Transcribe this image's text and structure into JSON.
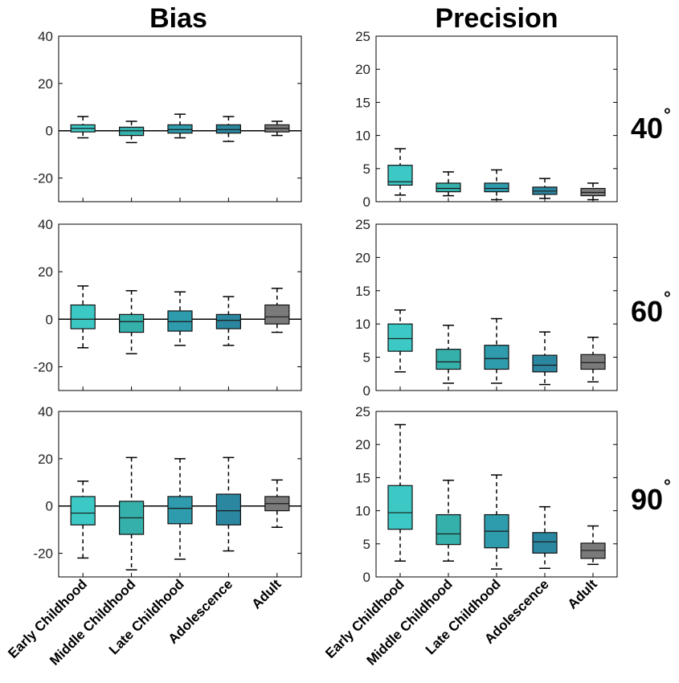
{
  "figure": {
    "columns": [
      "Bias",
      "Precision"
    ],
    "rows": [
      {
        "value": "40",
        "unit": "°"
      },
      {
        "value": "60",
        "unit": "°"
      },
      {
        "value": "90",
        "unit": "°"
      }
    ],
    "categories": [
      "Early Childhood",
      "Middle Childhood",
      "Late Childhood",
      "Adolescence",
      "Adult"
    ],
    "colors": [
      "#3cc8c4",
      "#35b0ab",
      "#2e9cac",
      "#2b87a0",
      "#7a7a7a"
    ]
  },
  "chart_data": [
    {
      "type": "box",
      "panel": "bias-40",
      "title": "Bias",
      "row": "40°",
      "ylim": [
        -30,
        40
      ],
      "yticks": [
        -20,
        0,
        20,
        40
      ],
      "zero_line": true,
      "categories": [
        "Early Childhood",
        "Middle Childhood",
        "Late Childhood",
        "Adolescence",
        "Adult"
      ],
      "boxes": [
        {
          "whislo": -3,
          "q1": -0.5,
          "med": 1,
          "q3": 2.5,
          "whishi": 6
        },
        {
          "whislo": -5,
          "q1": -2,
          "med": 0,
          "q3": 1.5,
          "whishi": 4
        },
        {
          "whislo": -3,
          "q1": -1,
          "med": 0.5,
          "q3": 2.5,
          "whishi": 7
        },
        {
          "whislo": -4.5,
          "q1": -1,
          "med": 0.5,
          "q3": 2.5,
          "whishi": 6
        },
        {
          "whislo": -2,
          "q1": -0.5,
          "med": 1,
          "q3": 2.5,
          "whishi": 4
        }
      ]
    },
    {
      "type": "box",
      "panel": "precision-40",
      "title": "Precision",
      "row": "40°",
      "ylim": [
        0,
        25
      ],
      "yticks": [
        0,
        5,
        10,
        15,
        20,
        25
      ],
      "zero_line": false,
      "categories": [
        "Early Childhood",
        "Middle Childhood",
        "Late Childhood",
        "Adolescence",
        "Adult"
      ],
      "boxes": [
        {
          "whislo": 1,
          "q1": 2.5,
          "med": 3,
          "q3": 5.5,
          "whishi": 8
        },
        {
          "whislo": 0.9,
          "q1": 1.5,
          "med": 2,
          "q3": 2.8,
          "whishi": 4.5
        },
        {
          "whislo": 0.3,
          "q1": 1.5,
          "med": 2,
          "q3": 2.8,
          "whishi": 4.8
        },
        {
          "whislo": 0.5,
          "q1": 1.1,
          "med": 1.6,
          "q3": 2.2,
          "whishi": 3.5
        },
        {
          "whislo": 0.3,
          "q1": 0.9,
          "med": 1.4,
          "q3": 2.0,
          "whishi": 2.8
        }
      ]
    },
    {
      "type": "box",
      "panel": "bias-60",
      "title": "Bias",
      "row": "60°",
      "ylim": [
        -30,
        40
      ],
      "yticks": [
        -20,
        0,
        20,
        40
      ],
      "zero_line": true,
      "categories": [
        "Early Childhood",
        "Middle Childhood",
        "Late Childhood",
        "Adolescence",
        "Adult"
      ],
      "boxes": [
        {
          "whislo": -12,
          "q1": -4,
          "med": 0,
          "q3": 6,
          "whishi": 14
        },
        {
          "whislo": -14.5,
          "q1": -5.5,
          "med": -1,
          "q3": 2,
          "whishi": 12
        },
        {
          "whislo": -11,
          "q1": -5,
          "med": -1,
          "q3": 3.5,
          "whishi": 11.5
        },
        {
          "whislo": -11,
          "q1": -4,
          "med": -0.5,
          "q3": 2,
          "whishi": 9.5
        },
        {
          "whislo": -5.5,
          "q1": -2,
          "med": 1,
          "q3": 6,
          "whishi": 13
        }
      ]
    },
    {
      "type": "box",
      "panel": "precision-60",
      "title": "Precision",
      "row": "60°",
      "ylim": [
        0,
        25
      ],
      "yticks": [
        0,
        5,
        10,
        15,
        20,
        25
      ],
      "zero_line": false,
      "categories": [
        "Early Childhood",
        "Middle Childhood",
        "Late Childhood",
        "Adolescence",
        "Adult"
      ],
      "boxes": [
        {
          "whislo": 2.8,
          "q1": 5.9,
          "med": 7.8,
          "q3": 10,
          "whishi": 12.1
        },
        {
          "whislo": 1.1,
          "q1": 3.2,
          "med": 4.3,
          "q3": 6.2,
          "whishi": 9.8
        },
        {
          "whislo": 1.1,
          "q1": 3.2,
          "med": 4.8,
          "q3": 6.8,
          "whishi": 10.8
        },
        {
          "whislo": 0.9,
          "q1": 2.8,
          "med": 3.8,
          "q3": 5.3,
          "whishi": 8.8
        },
        {
          "whislo": 1.3,
          "q1": 3.2,
          "med": 4.2,
          "q3": 5.4,
          "whishi": 8
        }
      ]
    },
    {
      "type": "box",
      "panel": "bias-90",
      "title": "Bias",
      "row": "90°",
      "ylim": [
        -30,
        40
      ],
      "yticks": [
        -20,
        0,
        20,
        40
      ],
      "zero_line": true,
      "categories": [
        "Early Childhood",
        "Middle Childhood",
        "Late Childhood",
        "Adolescence",
        "Adult"
      ],
      "boxes": [
        {
          "whislo": -22,
          "q1": -8,
          "med": -3,
          "q3": 4,
          "whishi": 10.5
        },
        {
          "whislo": -27,
          "q1": -12,
          "med": -5,
          "q3": 2,
          "whishi": 20.5
        },
        {
          "whislo": -22.5,
          "q1": -7.5,
          "med": -1,
          "q3": 4,
          "whishi": 20
        },
        {
          "whislo": -19,
          "q1": -8,
          "med": -2,
          "q3": 5,
          "whishi": 20.5
        },
        {
          "whislo": -9,
          "q1": -2,
          "med": 1,
          "q3": 4,
          "whishi": 11
        }
      ]
    },
    {
      "type": "box",
      "panel": "precision-90",
      "title": "Precision",
      "row": "90°",
      "ylim": [
        0,
        25
      ],
      "yticks": [
        0,
        5,
        10,
        15,
        20,
        25
      ],
      "zero_line": false,
      "categories": [
        "Early Childhood",
        "Middle Childhood",
        "Late Childhood",
        "Adolescence",
        "Adult"
      ],
      "boxes": [
        {
          "whislo": 2.4,
          "q1": 7.2,
          "med": 9.7,
          "q3": 13.8,
          "whishi": 23
        },
        {
          "whislo": 2.4,
          "q1": 4.9,
          "med": 6.5,
          "q3": 9.4,
          "whishi": 14.6
        },
        {
          "whislo": 1.2,
          "q1": 4.4,
          "med": 6.9,
          "q3": 9.4,
          "whishi": 15.4
        },
        {
          "whislo": 1.3,
          "q1": 3.6,
          "med": 5.3,
          "q3": 6.7,
          "whishi": 10.6
        },
        {
          "whislo": 1.9,
          "q1": 2.8,
          "med": 4,
          "q3": 5.1,
          "whishi": 7.7
        }
      ]
    }
  ]
}
